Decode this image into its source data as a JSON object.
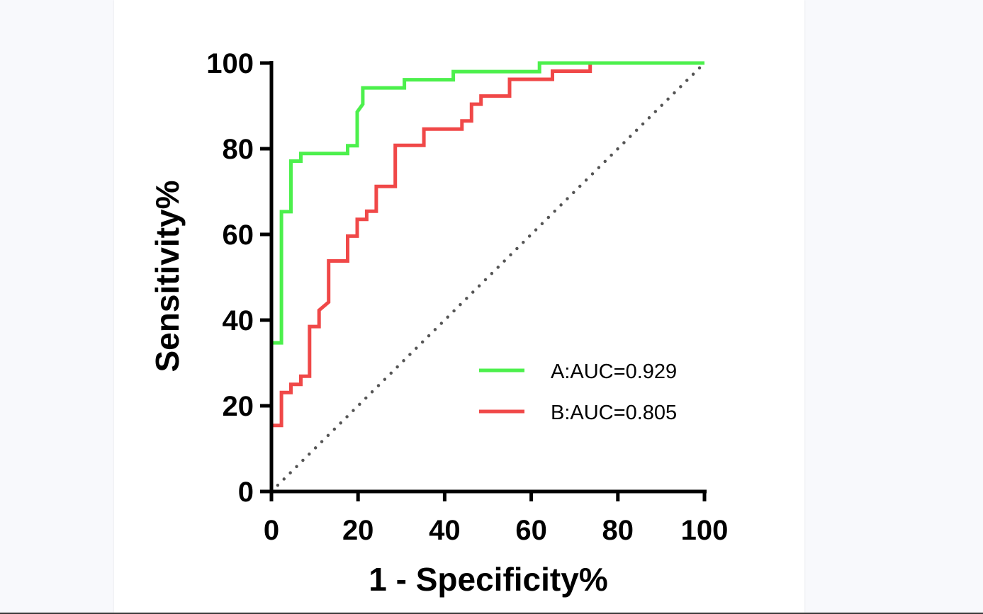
{
  "chart_data": {
    "type": "line",
    "title": "",
    "xlabel": "1 - Specificity%",
    "ylabel": "Sensitivity%",
    "xlim": [
      0,
      100
    ],
    "ylim": [
      0,
      100
    ],
    "xticks": [
      "0",
      "20",
      "40",
      "60",
      "80",
      "100"
    ],
    "yticks": [
      "0",
      "20",
      "40",
      "60",
      "80",
      "100"
    ],
    "legend_position": "lower-right",
    "reference_line": {
      "name": "chance",
      "x": [
        0,
        100
      ],
      "y": [
        0,
        100
      ],
      "style": "dotted",
      "color": "#555555"
    },
    "series": [
      {
        "name": "A",
        "label": "A:AUC=0.929",
        "color": "#4cf04c",
        "x": [
          0,
          0,
          2.3,
          2.3,
          4.5,
          4.5,
          6.8,
          6.8,
          17.6,
          17.6,
          19.8,
          19.8,
          21.1,
          21.1,
          30.7,
          30.7,
          42.0,
          42.0,
          61.9,
          61.9,
          100
        ],
        "y": [
          0,
          34.7,
          34.7,
          65.3,
          65.3,
          77.1,
          77.1,
          78.9,
          78.9,
          80.7,
          80.7,
          88.6,
          90.4,
          94.2,
          94.2,
          96.1,
          96.1,
          98.0,
          98.0,
          100,
          100
        ]
      },
      {
        "name": "B",
        "label": "B:AUC=0.805",
        "color": "#f04848",
        "x": [
          0,
          0,
          2.3,
          2.3,
          4.5,
          4.5,
          6.8,
          6.8,
          8.8,
          8.8,
          11.0,
          11.0,
          13.2,
          13.2,
          17.6,
          17.6,
          19.8,
          19.8,
          22.0,
          22.0,
          24.2,
          24.2,
          28.6,
          28.6,
          35.2,
          35.2,
          44.0,
          44.0,
          46.2,
          46.2,
          48.4,
          48.4,
          55.0,
          55.0,
          64.9,
          64.9,
          73.6,
          73.6,
          100
        ],
        "y": [
          0,
          15.4,
          15.4,
          23.1,
          23.1,
          25.0,
          25.0,
          26.9,
          26.9,
          38.5,
          38.5,
          42.3,
          44.2,
          53.8,
          53.8,
          59.6,
          59.6,
          63.5,
          63.5,
          65.4,
          65.4,
          71.2,
          71.2,
          80.8,
          80.8,
          84.6,
          84.6,
          86.5,
          86.5,
          90.4,
          90.4,
          92.3,
          92.3,
          96.2,
          96.2,
          98.1,
          98.1,
          100,
          100
        ]
      }
    ]
  }
}
